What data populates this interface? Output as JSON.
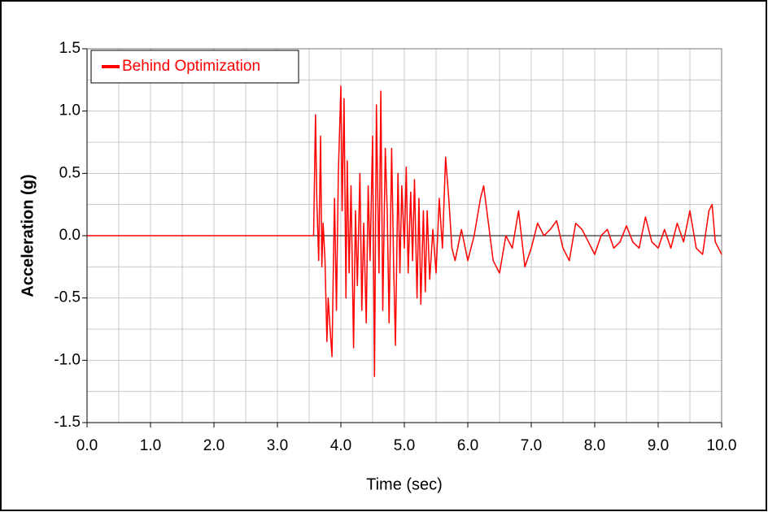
{
  "chart_data": {
    "type": "line",
    "xlabel": "Time (sec)",
    "ylabel": "Acceleration (g)",
    "x": [
      0,
      3.57,
      3.6,
      3.62,
      3.65,
      3.68,
      3.7,
      3.72,
      3.75,
      3.78,
      3.8,
      3.83,
      3.86,
      3.88,
      3.9,
      3.93,
      3.96,
      4.0,
      4.02,
      4.05,
      4.08,
      4.1,
      4.13,
      4.16,
      4.2,
      4.23,
      4.26,
      4.3,
      4.33,
      4.36,
      4.4,
      4.43,
      4.46,
      4.5,
      4.53,
      4.56,
      4.6,
      4.63,
      4.66,
      4.7,
      4.73,
      4.76,
      4.8,
      4.83,
      4.86,
      4.9,
      4.93,
      4.96,
      5.0,
      5.03,
      5.06,
      5.1,
      5.13,
      5.16,
      5.2,
      5.23,
      5.26,
      5.3,
      5.33,
      5.36,
      5.4,
      5.45,
      5.5,
      5.55,
      5.6,
      5.65,
      5.7,
      5.75,
      5.8,
      5.9,
      6.0,
      6.1,
      6.2,
      6.25,
      6.3,
      6.4,
      6.5,
      6.6,
      6.7,
      6.8,
      6.9,
      7.0,
      7.1,
      7.2,
      7.3,
      7.4,
      7.5,
      7.6,
      7.7,
      7.8,
      7.9,
      8.0,
      8.1,
      8.2,
      8.3,
      8.4,
      8.5,
      8.6,
      8.7,
      8.8,
      8.9,
      9.0,
      9.1,
      9.2,
      9.3,
      9.4,
      9.5,
      9.6,
      9.7,
      9.8,
      9.85,
      9.9,
      10.0
    ],
    "series": [
      {
        "name": "Behind Optimization",
        "color": "#ff0000",
        "values": [
          0,
          0,
          0.97,
          0.3,
          -0.2,
          0.8,
          -0.25,
          0.1,
          -0.2,
          -0.85,
          -0.5,
          -0.75,
          -0.97,
          -0.3,
          0.3,
          -0.6,
          0.5,
          1.2,
          0.2,
          1.1,
          -0.5,
          0.6,
          -0.3,
          0.4,
          -0.9,
          0.2,
          -0.4,
          0.5,
          -0.6,
          0.1,
          -0.7,
          0.4,
          -0.2,
          0.8,
          -1.13,
          1.05,
          -0.3,
          1.16,
          -0.6,
          0.7,
          0.2,
          -0.7,
          0.7,
          -0.2,
          -0.88,
          0.5,
          -0.3,
          0.4,
          -0.1,
          0.55,
          -0.3,
          0.35,
          -0.2,
          0.45,
          -0.5,
          0.3,
          -0.55,
          0.2,
          -0.45,
          0.2,
          -0.35,
          0.05,
          -0.3,
          0.3,
          -0.1,
          0.63,
          0.3,
          -0.1,
          -0.2,
          0.05,
          -0.2,
          0.0,
          0.3,
          0.4,
          0.2,
          -0.2,
          -0.3,
          0.0,
          -0.1,
          0.2,
          -0.25,
          -0.1,
          0.1,
          0.0,
          0.05,
          0.12,
          -0.1,
          -0.2,
          0.1,
          0.05,
          -0.05,
          -0.15,
          0.0,
          0.05,
          -0.1,
          -0.05,
          0.08,
          -0.05,
          -0.1,
          0.15,
          -0.05,
          -0.1,
          0.05,
          -0.1,
          0.1,
          -0.05,
          0.2,
          -0.1,
          -0.15,
          0.2,
          0.25,
          -0.05,
          -0.15
        ]
      }
    ],
    "xlim": [
      0,
      10
    ],
    "xticks": [
      {
        "value": 0,
        "label": "0.0"
      },
      {
        "value": 1,
        "label": "1.0"
      },
      {
        "value": 2,
        "label": "2.0"
      },
      {
        "value": 3,
        "label": "3.0"
      },
      {
        "value": 4,
        "label": "4.0"
      },
      {
        "value": 5,
        "label": "5.0"
      },
      {
        "value": 6,
        "label": "6.0"
      },
      {
        "value": 7,
        "label": "7.0"
      },
      {
        "value": 8,
        "label": "8.0"
      },
      {
        "value": 9,
        "label": "9.0"
      },
      {
        "value": 10,
        "label": "10.0"
      }
    ],
    "ylim": [
      -1.5,
      1.5
    ],
    "yticks": [
      -1.5,
      {
        "value": -1,
        "label": "-1.0"
      },
      -0.5,
      {
        "value": 0,
        "label": "0.0"
      },
      0.5,
      {
        "value": 1,
        "label": "1.0"
      },
      1.5
    ],
    "grid": true,
    "legend": "upper left"
  }
}
